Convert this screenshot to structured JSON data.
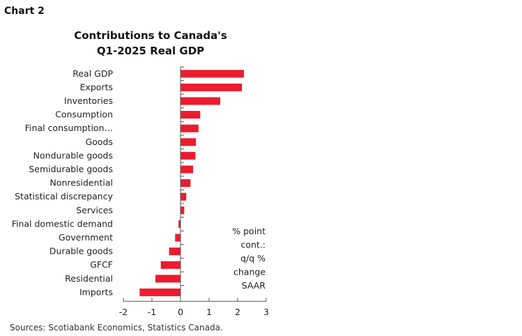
{
  "header": "Chart 2",
  "source": "Sources: Scotiabank Economics, Statistics Canada.",
  "colors": {
    "bar": "#EC1C2E",
    "axis": "#555555"
  },
  "chart_data": {
    "type": "bar",
    "orientation": "horizontal",
    "title_lines": [
      "Contributions to Canada's",
      "Q1-2025 Real GDP"
    ],
    "categories": [
      "Real GDP",
      "Exports",
      "Inventories",
      "Consumption",
      "Final consumption…",
      "Goods",
      "Nondurable goods",
      "Semidurable goods",
      "Nonresidential",
      "Statistical discrepancy",
      "Services",
      "Final domestic demand",
      "Government",
      "Durable goods",
      "GFCF",
      "Residential",
      "Imports"
    ],
    "values": [
      2.22,
      2.15,
      1.39,
      0.69,
      0.63,
      0.54,
      0.52,
      0.44,
      0.35,
      0.2,
      0.13,
      -0.07,
      -0.19,
      -0.4,
      -0.69,
      -0.88,
      -1.43
    ],
    "annotation_lines": [
      "% point",
      "cont.:",
      "q/q %",
      "change",
      "SAAR"
    ],
    "xlim": [
      -2,
      3
    ],
    "xticks": [
      "-2",
      "-1",
      "0",
      "1",
      "2",
      "3"
    ],
    "grid": false,
    "legend": "none"
  }
}
